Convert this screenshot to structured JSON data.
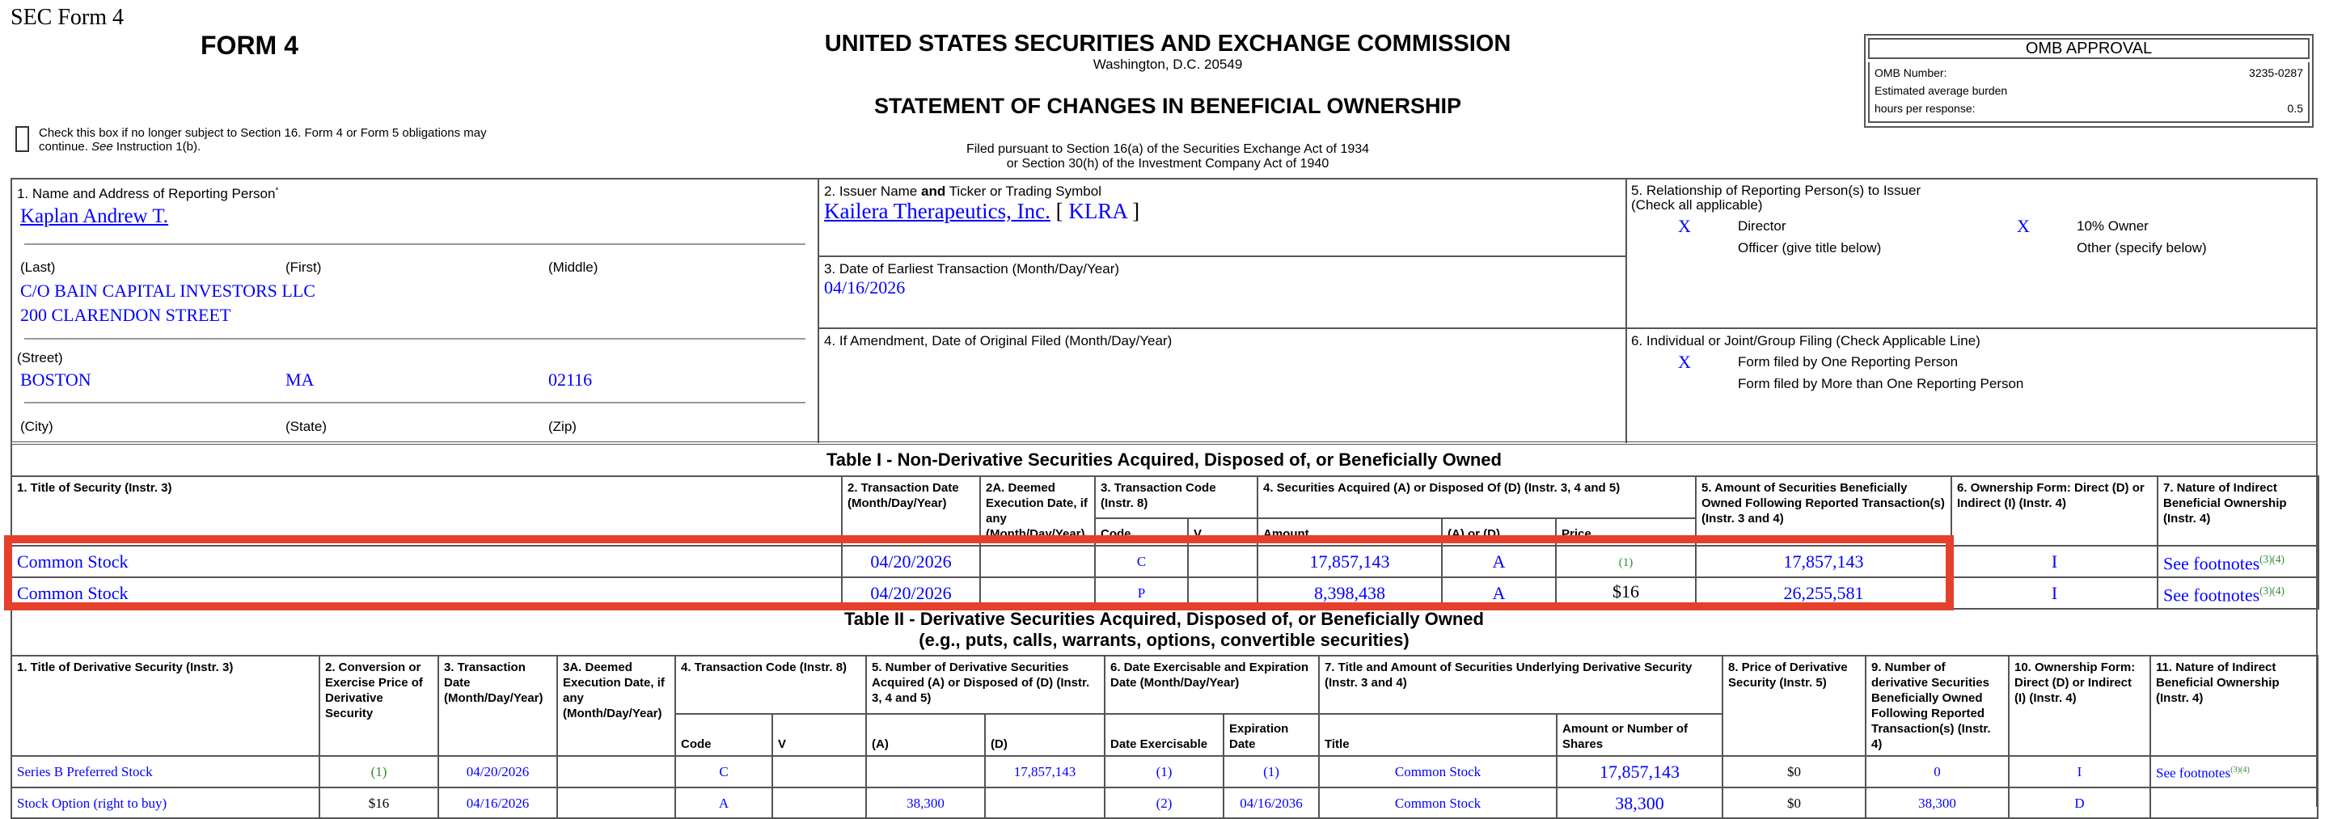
{
  "header": {
    "sec_form": "SEC Form 4",
    "form_name": "FORM 4",
    "agency": "UNITED STATES SECURITIES AND EXCHANGE COMMISSION",
    "location": "Washington, D.C. 20549",
    "statement": "STATEMENT OF CHANGES IN BENEFICIAL OWNERSHIP",
    "checkbox_text_1": "Check this box if no longer subject to Section 16. Form 4 or Form 5 obligations may",
    "checkbox_text_2a": "continue. ",
    "checkbox_text_2b": "See",
    "checkbox_text_2c": " Instruction 1(b).",
    "filed_1": "Filed pursuant to Section 16(a) of the Securities Exchange Act of 1934",
    "filed_2": "or Section 30(h) of the Investment Company Act of 1940"
  },
  "omb": {
    "title": "OMB APPROVAL",
    "number_label": "OMB Number:",
    "number_value": "3235-0287",
    "burden_label": "Estimated average burden",
    "hours_label": "hours per response:",
    "hours_value": "0.5"
  },
  "box1": {
    "label": "1. Name and Address of Reporting Person",
    "asterisk": "*",
    "name": "Kaplan Andrew T.",
    "last": "(Last)",
    "first": "(First)",
    "middle": "(Middle)",
    "street1": "C/O BAIN CAPITAL INVESTORS LLC",
    "street2": "200 CLARENDON STREET",
    "street_label": "(Street)",
    "city": "BOSTON",
    "state": "MA",
    "zip": "02116",
    "city_label": "(City)",
    "state_label": "(State)",
    "zip_label": "(Zip)"
  },
  "box2": {
    "label_a": "2. Issuer Name ",
    "label_b": "and",
    "label_c": " Ticker or Trading Symbol",
    "issuer": "Kailera Therapeutics, Inc.",
    "ticker_open": " [ ",
    "ticker": "KLRA",
    "ticker_close": " ]"
  },
  "box3": {
    "label": "3. Date of Earliest Transaction (Month/Day/Year)",
    "value": "04/16/2026"
  },
  "box4": {
    "label": "4. If Amendment, Date of Original Filed (Month/Day/Year)"
  },
  "box5": {
    "label_1": "5. Relationship of Reporting Person(s) to Issuer",
    "label_2": "(Check all applicable)",
    "director_mark": "X",
    "director": "Director",
    "owner_mark": "X",
    "owner": "10% Owner",
    "officer": "Officer (give title below)",
    "other": "Other (specify below)"
  },
  "box6": {
    "label": "6. Individual or Joint/Group Filing (Check Applicable Line)",
    "one_mark": "X",
    "one": "Form filed by One Reporting Person",
    "more": "Form filed by More than One Reporting Person"
  },
  "table1": {
    "title": "Table I - Non-Derivative Securities Acquired, Disposed of, or Beneficially Owned",
    "headers": {
      "c1": "1. Title of Security (Instr. 3)",
      "c2": "2. Transaction Date (Month/Day/Year)",
      "c2a": "2A. Deemed Execution Date, if any (Month/Day/Year)",
      "c3": "3. Transaction Code (Instr. 8)",
      "c3_code": "Code",
      "c3_v": "V",
      "c4": "4. Securities Acquired (A) or Disposed Of (D) (Instr. 3, 4 and 5)",
      "c4_amount": "Amount",
      "c4_ad": "(A) or (D)",
      "c4_price": "Price",
      "c5": "5. Amount of Securities Beneficially Owned Following Reported Transaction(s) (Instr. 3 and 4)",
      "c6": "6. Ownership Form: Direct (D) or Indirect (I) (Instr. 4)",
      "c7": "7. Nature of Indirect Beneficial Ownership (Instr. 4)"
    },
    "rows": [
      {
        "title": "Common Stock",
        "date": "04/20/2026",
        "deemed": "",
        "code": "C",
        "v": "",
        "amount": "17,857,143",
        "ad": "A",
        "price": "",
        "price_note": "(1)",
        "owned": "17,857,143",
        "form": "I",
        "nature": "See footnotes",
        "nature_note": "(3)(4)"
      },
      {
        "title": "Common Stock",
        "date": "04/20/2026",
        "deemed": "",
        "code": "P",
        "v": "",
        "amount": "8,398,438",
        "ad": "A",
        "price": "$16",
        "price_note": "",
        "owned": "26,255,581",
        "form": "I",
        "nature": "See footnotes",
        "nature_note": "(3)(4)"
      }
    ]
  },
  "table2": {
    "title_1": "Table II - Derivative Securities Acquired, Disposed of, or Beneficially Owned",
    "title_2": "(e.g., puts, calls, warrants, options, convertible securities)",
    "headers": {
      "c1": "1. Title of Derivative Security (Instr. 3)",
      "c2": "2. Conversion or Exercise Price of Derivative Security",
      "c3": "3. Transaction Date (Month/Day/Year)",
      "c3a": "3A. Deemed Execution Date, if any (Month/Day/Year)",
      "c4": "4. Transaction Code (Instr. 8)",
      "c4_code": "Code",
      "c4_v": "V",
      "c5": "5. Number of Derivative Securities Acquired (A) or Disposed of (D) (Instr. 3, 4 and 5)",
      "c5_a": "(A)",
      "c5_d": "(D)",
      "c6": "6. Date Exercisable and Expiration Date (Month/Day/Year)",
      "c6_ex": "Date Exercisable",
      "c6_exp": "Expiration Date",
      "c7": "7. Title and Amount of Securities Underlying Derivative Security (Instr. 3 and 4)",
      "c7_title": "Title",
      "c7_amount": "Amount or Number of Shares",
      "c8": "8. Price of Derivative Security (Instr. 5)",
      "c9": "9. Number of derivative Securities Beneficially Owned Following Reported Transaction(s) (Instr. 4)",
      "c10": "10. Ownership Form: Direct (D) or Indirect (I) (Instr. 4)",
      "c11": "11. Nature of Indirect Beneficial Ownership (Instr. 4)"
    },
    "rows": [
      {
        "title": "Series B Preferred Stock",
        "price_pre": "",
        "price_note": "(1)",
        "date": "04/20/2026",
        "deemed": "",
        "code": "C",
        "v": "",
        "a": "",
        "d": "17,857,143",
        "exercisable": "(1)",
        "expiration": "(1)",
        "exp_is_note": true,
        "under_title": "Common Stock",
        "under_amount": "17,857,143",
        "deriv_price": "$0",
        "owned": "0",
        "form": "I",
        "nature": "See footnotes",
        "nature_note": "(3)(4)"
      },
      {
        "title": "Stock Option (right to buy)",
        "price_pre": "$16",
        "price_note": "",
        "date": "04/16/2026",
        "deemed": "",
        "code": "A",
        "v": "",
        "a": "38,300",
        "d": "",
        "exercisable": "(2)",
        "expiration": "04/16/2036",
        "exp_is_note": false,
        "under_title": "Common Stock",
        "under_amount": "38,300",
        "deriv_price": "$0",
        "owned": "38,300",
        "form": "D",
        "nature": "",
        "nature_note": ""
      }
    ]
  },
  "colors": {
    "data_text": "#0000ff",
    "footnote": "#2e8b2e",
    "highlight": "#e5402b"
  }
}
